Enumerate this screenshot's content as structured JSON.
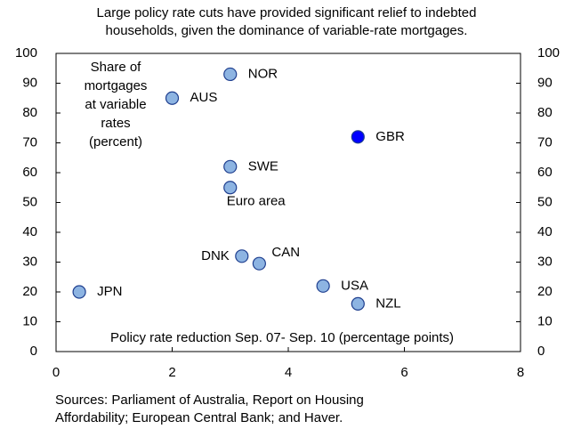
{
  "chart_data": {
    "type": "scatter",
    "title_lines": [
      "Large policy rate cuts have provided significant relief to indebted",
      "households, given the dominance of variable-rate mortgages."
    ],
    "y_label_lines": [
      "Share of",
      "mortgages",
      "at variable",
      "rates",
      "(percent)"
    ],
    "x_label": "Policy rate reduction Sep. 07- Sep. 10 (percentage points)",
    "source_lines": [
      "Sources: Parliament of Australia, Report on Housing",
      "Affordability; European Central Bank; and Haver."
    ],
    "point_labels": [
      "JPN",
      "AUS",
      "NOR",
      "SWE",
      "Euro area",
      "DNK",
      "CAN",
      "USA",
      "NZL",
      "GBR"
    ],
    "x": [
      0.4,
      2.0,
      3.0,
      3.0,
      3.0,
      3.2,
      3.5,
      4.6,
      5.2,
      5.2
    ],
    "values": [
      20,
      85,
      93,
      62,
      55,
      32,
      29.5,
      22,
      16,
      72
    ],
    "colors": [
      "#8db4e2",
      "#8db4e2",
      "#8db4e2",
      "#8db4e2",
      "#8db4e2",
      "#8db4e2",
      "#8db4e2",
      "#8db4e2",
      "#8db4e2",
      "#0000ff"
    ],
    "xlim": [
      0,
      8
    ],
    "xticks": [
      0,
      2,
      4,
      6,
      8
    ],
    "ylim": [
      0,
      100
    ],
    "yticks": [
      0,
      10,
      20,
      30,
      40,
      50,
      60,
      70,
      80,
      90,
      100
    ],
    "y2lim": [
      0,
      100
    ],
    "y2ticks": [
      0,
      10,
      20,
      30,
      40,
      50,
      60,
      70,
      80,
      90,
      100
    ]
  }
}
